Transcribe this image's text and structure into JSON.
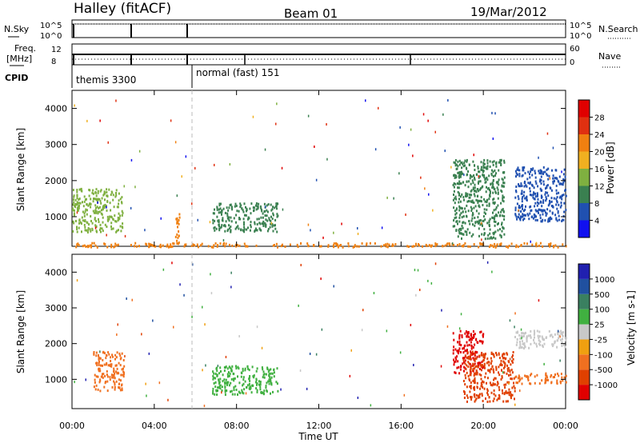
{
  "header": {
    "station": "Halley (fitACF)",
    "beam": "Beam 01",
    "date": "19/Mar/2012"
  },
  "strip_left": {
    "nsky_label": "N.Sky",
    "nsky_ticks": [
      "10^5",
      "10^0"
    ],
    "freq_label": "Freq.",
    "freq_unit": "[MHz]",
    "freq_ticks": [
      "12",
      "8"
    ],
    "cpid_label": "CPID"
  },
  "strip_right": {
    "nsearch_label": "N.Search",
    "nsearch_ticks": [
      "10^5",
      "10^0"
    ],
    "nave_label": "Nave",
    "nave_ticks": [
      "60",
      "0"
    ]
  },
  "cpid_modes": [
    {
      "label": "themis 3300"
    },
    {
      "label": "normal (fast) 151"
    }
  ],
  "colors": {
    "power_scale": [
      "#1010f0",
      "#2050b0",
      "#3a8050",
      "#7fb040",
      "#f0b020",
      "#f08010",
      "#e03010",
      "#e00000"
    ],
    "velocity_scale": [
      "#e00000",
      "#e04000",
      "#f07020",
      "#f0a010",
      "#c8c8c8",
      "#40b040",
      "#3a8060",
      "#2050a0",
      "#2020b0"
    ]
  },
  "chart_data": [
    {
      "type": "heatmap",
      "panel": "power",
      "ylabel": "Slant Range [km]",
      "yticks": [
        "1000",
        "2000",
        "3000",
        "4000"
      ],
      "ylim": [
        180,
        4500
      ],
      "xlim_hours": [
        0,
        24
      ],
      "colorbar_label": "Power [dB]",
      "colorbar_ticks": [
        "4",
        "8",
        "12",
        "16",
        "20",
        "24",
        "28"
      ],
      "colorbar_range": [
        0,
        30
      ],
      "features": [
        {
          "t_start": 0.0,
          "t_end": 2.5,
          "range_km": [
            600,
            1800
          ],
          "value": 12
        },
        {
          "t_start": 5.0,
          "t_end": 5.2,
          "range_km": [
            300,
            1100
          ],
          "value": 20
        },
        {
          "t_start": 6.8,
          "t_end": 10.0,
          "range_km": [
            600,
            1400
          ],
          "value": 8
        },
        {
          "t_start": 18.5,
          "t_end": 21.0,
          "range_km": [
            400,
            2600
          ],
          "value": 10
        },
        {
          "t_start": 21.5,
          "t_end": 24.0,
          "range_km": [
            900,
            2400
          ],
          "value": 6
        },
        {
          "t_start": 0.0,
          "t_end": 24.0,
          "range_km": [
            180,
            300
          ],
          "value": 20
        }
      ]
    },
    {
      "type": "heatmap",
      "panel": "velocity",
      "ylabel": "Slant Range [km]",
      "yticks": [
        "1000",
        "2000",
        "3000",
        "4000"
      ],
      "ylim": [
        180,
        4500
      ],
      "xlim_hours": [
        0,
        24
      ],
      "xticks": [
        "00:00",
        "04:00",
        "08:00",
        "12:00",
        "16:00",
        "20:00",
        "00:00"
      ],
      "xlabel": "Time UT",
      "colorbar_label": "Velocity [m s-1]",
      "colorbar_ticks": [
        "-1000",
        "-500",
        "-100",
        "-25",
        "25",
        "100",
        "500",
        "1000"
      ],
      "features": [
        {
          "t_start": 1.0,
          "t_end": 2.5,
          "range_km": [
            700,
            1800
          ],
          "value": -100
        },
        {
          "t_start": 6.8,
          "t_end": 10.0,
          "range_km": [
            600,
            1400
          ],
          "value": 100
        },
        {
          "t_start": 18.5,
          "t_end": 20.0,
          "range_km": [
            1200,
            2400
          ],
          "value": -1000
        },
        {
          "t_start": 19.0,
          "t_end": 21.5,
          "range_km": [
            400,
            1800
          ],
          "value": -500
        },
        {
          "t_start": 21.5,
          "t_end": 24.0,
          "range_km": [
            900,
            1200
          ],
          "value": -100
        },
        {
          "t_start": 21.5,
          "t_end": 24.0,
          "range_km": [
            1900,
            2400
          ],
          "value": 0
        }
      ]
    }
  ]
}
